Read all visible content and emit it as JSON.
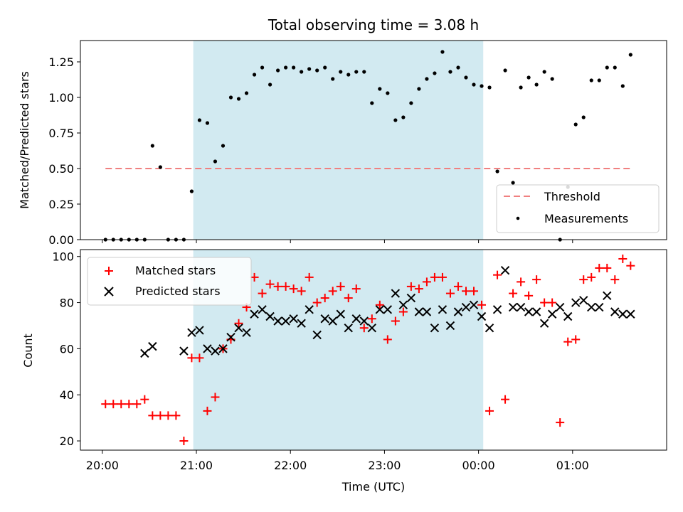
{
  "chart_data": [
    {
      "type": "scatter",
      "title": "Total observing time = 3.08 h",
      "ylabel": "Matched/Predicted stars",
      "xlabel": "",
      "xlim": [
        "19:46",
        "02:00"
      ],
      "ylim": [
        0,
        1.4
      ],
      "yticks": [
        "0.00",
        "0.25",
        "0.50",
        "0.75",
        "1.00",
        "1.25"
      ],
      "shaded_region": {
        "start": "20:58",
        "end": "00:03",
        "color": "#add8e6"
      },
      "threshold": {
        "name": "Threshold",
        "value": 0.5,
        "from": "20:02",
        "to": "01:38",
        "color": "#f08080"
      },
      "legend": {
        "position": "lower-right",
        "entries": [
          "Threshold",
          "Measurements"
        ]
      },
      "series": [
        {
          "name": "Measurements",
          "color": "#000000",
          "x": [
            "20:02",
            "20:07",
            "20:12",
            "20:17",
            "20:22",
            "20:27",
            "20:32",
            "20:37",
            "20:42",
            "20:47",
            "20:52",
            "20:57",
            "21:02",
            "21:07",
            "21:12",
            "21:17",
            "21:22",
            "21:27",
            "21:32",
            "21:37",
            "21:42",
            "21:47",
            "21:52",
            "21:57",
            "22:02",
            "22:07",
            "22:12",
            "22:17",
            "22:22",
            "22:27",
            "22:32",
            "22:37",
            "22:42",
            "22:47",
            "22:52",
            "22:57",
            "23:02",
            "23:07",
            "23:12",
            "23:17",
            "23:22",
            "23:27",
            "23:32",
            "23:37",
            "23:42",
            "23:47",
            "23:52",
            "23:57",
            "00:02",
            "00:07",
            "00:12",
            "00:17",
            "00:22",
            "00:27",
            "00:32",
            "00:37",
            "00:42",
            "00:47",
            "00:52",
            "00:57",
            "01:02",
            "01:07",
            "01:12",
            "01:17",
            "01:22",
            "01:27",
            "01:32",
            "01:37"
          ],
          "y": [
            0.0,
            0.0,
            0.0,
            0.0,
            0.0,
            0.0,
            0.66,
            0.51,
            0.0,
            0.0,
            0.0,
            0.34,
            0.84,
            0.82,
            0.55,
            0.66,
            1.0,
            0.99,
            1.03,
            1.16,
            1.21,
            1.09,
            1.19,
            1.21,
            1.21,
            1.18,
            1.2,
            1.19,
            1.21,
            1.13,
            1.18,
            1.16,
            1.18,
            1.18,
            0.96,
            1.06,
            1.03,
            0.84,
            0.86,
            0.96,
            1.06,
            1.13,
            1.17,
            1.32,
            1.18,
            1.21,
            1.14,
            1.09,
            1.08,
            1.07,
            0.48,
            1.19,
            0.4,
            1.07,
            1.14,
            1.09,
            1.18,
            1.13,
            0.0,
            0.37,
            0.81,
            0.86,
            1.12,
            1.12,
            1.21,
            1.21,
            1.08,
            1.3
          ]
        }
      ]
    },
    {
      "type": "scatter",
      "title": "",
      "xlabel": "Time (UTC)",
      "ylabel": "Count",
      "xlim": [
        "19:46",
        "02:00"
      ],
      "ylim": [
        16,
        103
      ],
      "yticks": [
        "20",
        "40",
        "60",
        "80",
        "100"
      ],
      "xticks": [
        "20:00",
        "21:00",
        "22:00",
        "23:00",
        "00:00",
        "01:00"
      ],
      "shaded_region": {
        "start": "20:58",
        "end": "00:03",
        "color": "#add8e6"
      },
      "legend": {
        "position": "upper-left",
        "entries": [
          "Matched stars",
          "Predicted stars"
        ]
      },
      "series": [
        {
          "name": "Matched stars",
          "marker": "+",
          "color": "#ff0000",
          "x": [
            "20:02",
            "20:07",
            "20:12",
            "20:17",
            "20:22",
            "20:27",
            "20:32",
            "20:37",
            "20:42",
            "20:47",
            "20:52",
            "20:57",
            "21:02",
            "21:07",
            "21:12",
            "21:17",
            "21:22",
            "21:27",
            "21:32",
            "21:37",
            "21:42",
            "21:47",
            "21:52",
            "21:57",
            "22:02",
            "22:07",
            "22:12",
            "22:17",
            "22:22",
            "22:27",
            "22:32",
            "22:37",
            "22:42",
            "22:47",
            "22:52",
            "22:57",
            "23:02",
            "23:07",
            "23:12",
            "23:17",
            "23:22",
            "23:27",
            "23:32",
            "23:37",
            "23:42",
            "23:47",
            "23:52",
            "23:57",
            "00:02",
            "00:07",
            "00:12",
            "00:17",
            "00:22",
            "00:27",
            "00:32",
            "00:37",
            "00:42",
            "00:47",
            "00:52",
            "00:57",
            "01:02",
            "01:07",
            "01:12",
            "01:17",
            "01:22",
            "01:27",
            "01:32",
            "01:37"
          ],
          "y": [
            36,
            36,
            36,
            36,
            36,
            38,
            31,
            31,
            31,
            31,
            20,
            56,
            56,
            33,
            39,
            60,
            64,
            71,
            78,
            91,
            84,
            88,
            87,
            87,
            86,
            85,
            91,
            80,
            82,
            85,
            87,
            82,
            86,
            69,
            73,
            79,
            64,
            72,
            76,
            87,
            86,
            89,
            91,
            91,
            84,
            87,
            85,
            85,
            79,
            33,
            92,
            38,
            84,
            89,
            83,
            90,
            80,
            80,
            28,
            63,
            64,
            90,
            91,
            95,
            95,
            90,
            99,
            96
          ]
        },
        {
          "name": "Predicted stars",
          "marker": "x",
          "color": "#000000",
          "x": [
            "20:27",
            "20:32",
            "20:52",
            "20:57",
            "21:02",
            "21:07",
            "21:12",
            "21:17",
            "21:22",
            "21:27",
            "21:32",
            "21:37",
            "21:42",
            "21:47",
            "21:52",
            "21:57",
            "22:02",
            "22:07",
            "22:12",
            "22:17",
            "22:22",
            "22:27",
            "22:32",
            "22:37",
            "22:42",
            "22:47",
            "22:52",
            "22:57",
            "23:02",
            "23:07",
            "23:12",
            "23:17",
            "23:22",
            "23:27",
            "23:32",
            "23:37",
            "23:42",
            "23:47",
            "23:52",
            "23:57",
            "00:02",
            "00:07",
            "00:12",
            "00:17",
            "00:22",
            "00:27",
            "00:32",
            "00:37",
            "00:42",
            "00:47",
            "00:52",
            "00:57",
            "01:02",
            "01:07",
            "01:12",
            "01:17",
            "01:22",
            "01:27",
            "01:32",
            "01:37"
          ],
          "y": [
            58,
            61,
            59,
            67,
            68,
            60,
            59,
            60,
            65,
            69,
            67,
            75,
            77,
            74,
            72,
            72,
            73,
            71,
            77,
            66,
            73,
            72,
            75,
            69,
            73,
            72,
            69,
            77,
            77,
            84,
            79,
            82,
            76,
            76,
            69,
            77,
            70,
            76,
            78,
            79,
            74,
            69,
            77,
            94,
            78,
            78,
            76,
            76,
            71,
            75,
            78,
            74,
            80,
            81,
            78,
            78,
            83,
            76,
            75,
            75
          ]
        }
      ]
    }
  ]
}
